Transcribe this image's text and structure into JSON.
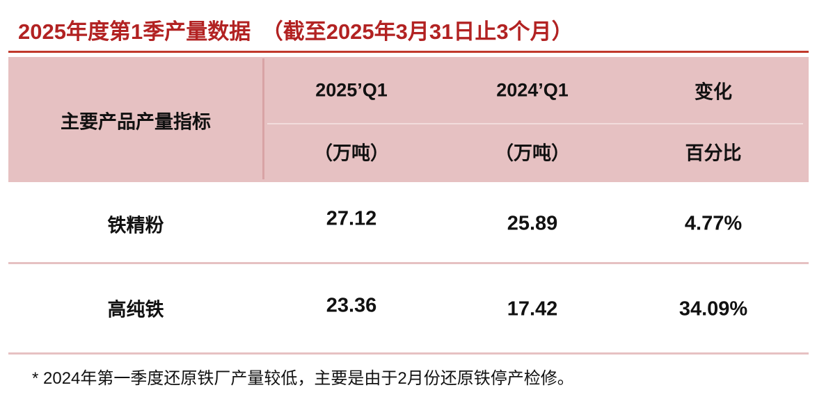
{
  "header": {
    "title": "2025年度第1季产量数据　（截至2025年3月31日止3个月）"
  },
  "table": {
    "header": {
      "indicator": "主要产品产量指标",
      "columns": [
        [
          "2025’Q1",
          "（万吨）"
        ],
        [
          "2024’Q1",
          "（万吨）"
        ],
        [
          "变化",
          "百分比"
        ]
      ]
    },
    "rows": [
      [
        "铁精粉",
        "27.12",
        "25.89",
        "4.77%"
      ],
      [
        "高纯铁",
        "23.36",
        "17.42",
        "34.09%"
      ]
    ]
  },
  "footnote": "* 2024年第一季度还原铁厂产量较低，主要是由于2月份还原铁停产检修。"
}
